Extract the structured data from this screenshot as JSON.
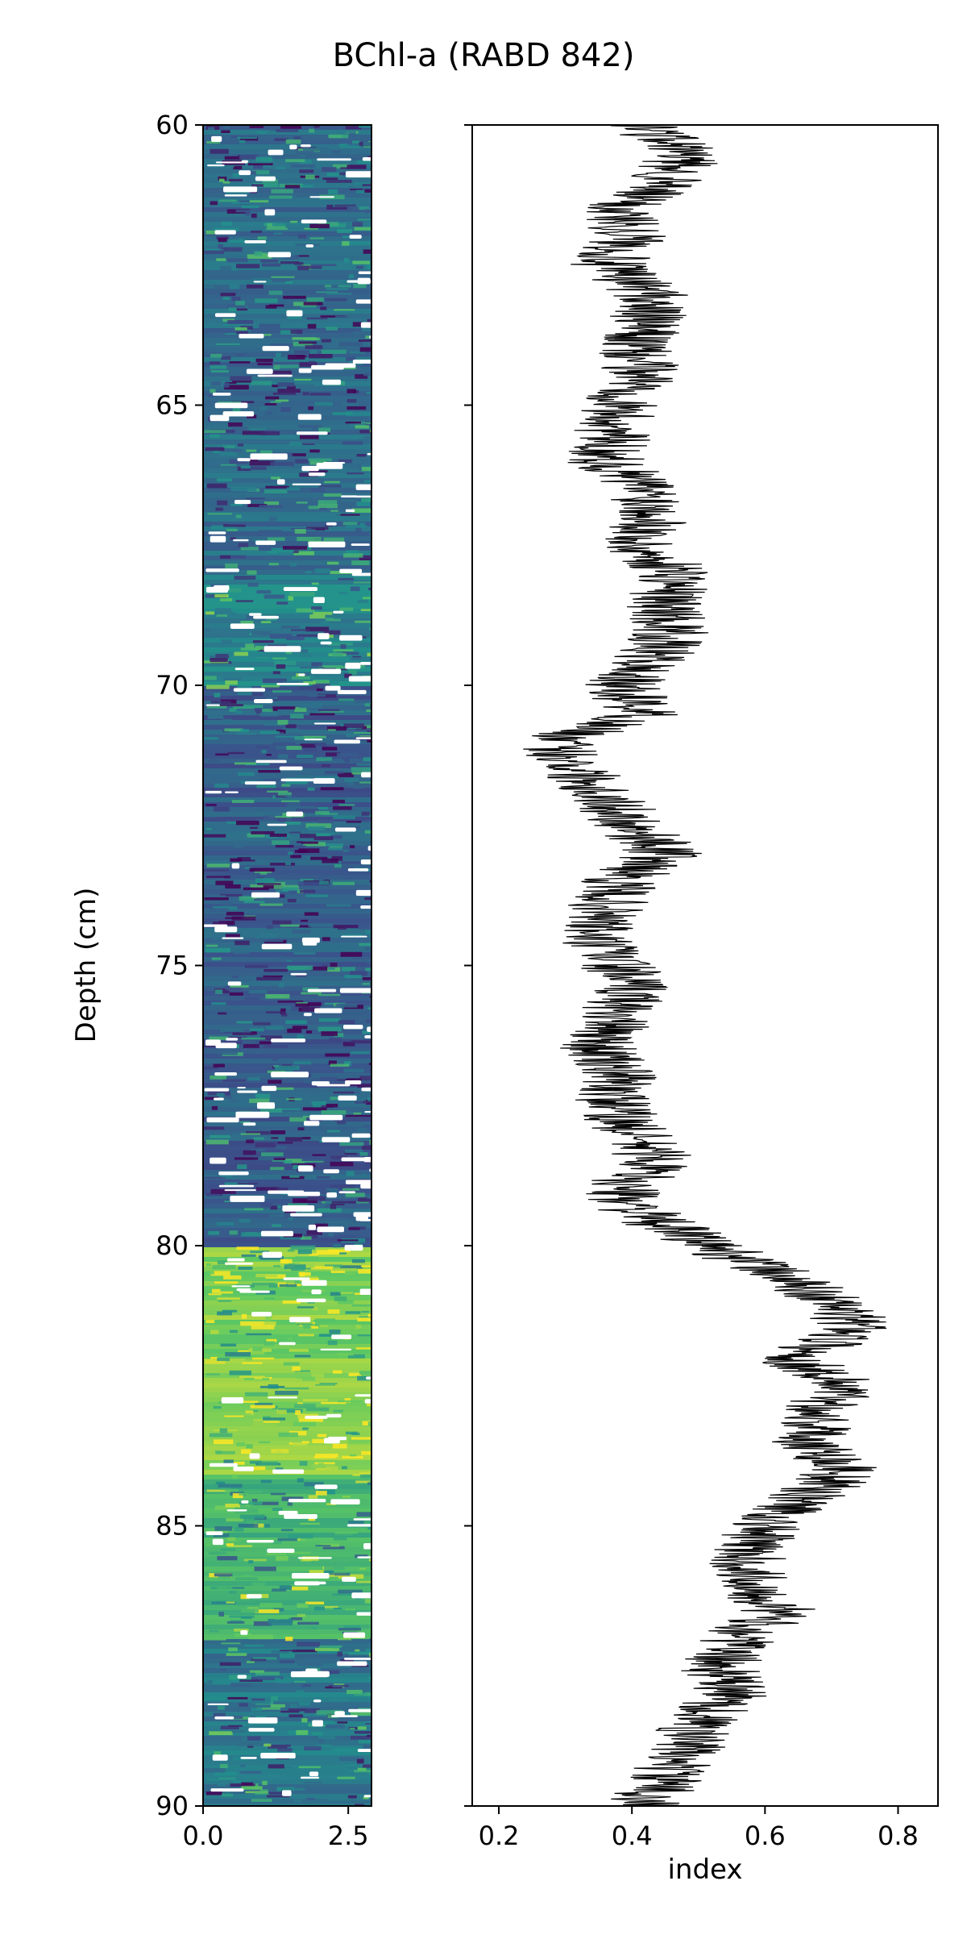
{
  "title": "BChl-a (RABD 842)",
  "colors": {
    "line": "#000000",
    "viridis": [
      "#440154",
      "#3b528b",
      "#21918c",
      "#5ec962",
      "#fde725"
    ]
  },
  "chart_data": [
    {
      "type": "heatmap",
      "name": "core-image",
      "title": "",
      "xlabel": "",
      "ylabel": "Depth (cm)",
      "xlim": [
        0.0,
        2.9
      ],
      "ylim": [
        90,
        60
      ],
      "x_ticks": [
        "0.0",
        "2.5"
      ],
      "y_ticks": [
        "60",
        "65",
        "70",
        "75",
        "80",
        "85",
        "90"
      ],
      "colormap": "viridis",
      "bands": [
        {
          "depth": [
            60,
            68
          ],
          "level": 0.35
        },
        {
          "depth": [
            68,
            70
          ],
          "level": 0.45
        },
        {
          "depth": [
            70,
            80
          ],
          "level": 0.3
        },
        {
          "depth": [
            80,
            84
          ],
          "level": 0.8
        },
        {
          "depth": [
            84,
            87
          ],
          "level": 0.65
        },
        {
          "depth": [
            87,
            90
          ],
          "level": 0.4
        }
      ]
    },
    {
      "type": "line",
      "name": "rabd-profile",
      "title": "",
      "xlabel": "index",
      "ylabel": "",
      "xlim": [
        0.16,
        0.86
      ],
      "ylim": [
        90,
        60
      ],
      "x_ticks": [
        "0.2",
        "0.4",
        "0.6",
        "0.8"
      ],
      "y_ticks": [
        "60",
        "65",
        "70",
        "75",
        "80",
        "85",
        "90"
      ],
      "series": [
        {
          "depth": [
            60,
            60.5,
            61,
            61.5,
            62,
            62.5,
            63,
            63.5,
            64,
            64.5,
            65,
            65.5,
            66,
            66.5,
            67,
            67.5,
            68,
            68.5,
            69,
            69.5,
            70,
            70.5,
            71,
            71.5,
            72,
            72.5,
            73,
            73.5,
            74,
            74.5,
            75,
            75.5,
            76,
            76.5,
            77,
            77.5,
            78,
            78.5,
            79,
            79.5,
            80,
            80.5,
            81,
            81.5,
            82,
            82.5,
            83,
            83.5,
            84,
            84.5,
            85,
            85.5,
            86,
            86.5,
            87,
            87.5,
            88,
            88.5,
            89,
            89.5,
            90
          ],
          "values": [
            0.42,
            0.48,
            0.45,
            0.38,
            0.4,
            0.36,
            0.43,
            0.42,
            0.4,
            0.42,
            0.38,
            0.37,
            0.36,
            0.42,
            0.44,
            0.4,
            0.47,
            0.45,
            0.46,
            0.43,
            0.38,
            0.42,
            0.28,
            0.32,
            0.36,
            0.4,
            0.45,
            0.38,
            0.36,
            0.34,
            0.38,
            0.4,
            0.37,
            0.35,
            0.38,
            0.37,
            0.4,
            0.44,
            0.38,
            0.42,
            0.52,
            0.62,
            0.7,
            0.74,
            0.64,
            0.72,
            0.68,
            0.67,
            0.72,
            0.66,
            0.6,
            0.57,
            0.58,
            0.62,
            0.56,
            0.53,
            0.55,
            0.5,
            0.48,
            0.45,
            0.42
          ]
        }
      ]
    }
  ]
}
